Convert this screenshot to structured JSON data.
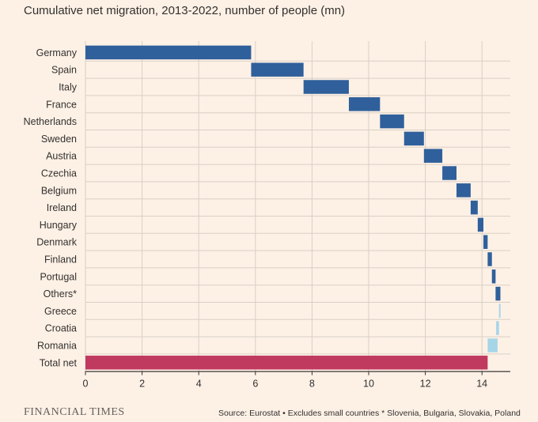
{
  "chart_data": {
    "type": "bar",
    "variant": "waterfall",
    "title": "Cumulative net migration, 2013-2022, number of people (mn)",
    "xlabel": "",
    "ylabel": "",
    "xlim": [
      0,
      15
    ],
    "xticks": [
      "0",
      "2",
      "4",
      "6",
      "8",
      "10",
      "12",
      "14"
    ],
    "grid": true,
    "categories": [
      "Germany",
      "Spain",
      "Italy",
      "France",
      "Netherlands",
      "Sweden",
      "Austria",
      "Czechia",
      "Belgium",
      "Ireland",
      "Hungary",
      "Denmark",
      "Finland",
      "Portugal",
      "Others*",
      "Greece",
      "Croatia",
      "Romania",
      "Total net"
    ],
    "start": [
      0,
      5.85,
      7.7,
      9.3,
      10.4,
      11.25,
      11.95,
      12.6,
      13.1,
      13.6,
      13.85,
      14.05,
      14.2,
      14.35,
      14.48,
      14.6,
      14.5,
      14.2,
      0
    ],
    "end": [
      5.85,
      7.7,
      9.3,
      10.4,
      11.25,
      11.95,
      12.6,
      13.1,
      13.6,
      13.85,
      14.05,
      14.2,
      14.35,
      14.48,
      14.65,
      14.65,
      14.6,
      14.55,
      14.2
    ],
    "change": [
      "increase",
      "increase",
      "increase",
      "increase",
      "increase",
      "increase",
      "increase",
      "increase",
      "increase",
      "increase",
      "increase",
      "increase",
      "increase",
      "increase",
      "increase",
      "decrease",
      "decrease",
      "decrease",
      "total"
    ]
  },
  "colors": {
    "increase": "#30609b",
    "decrease": "#a6d5e8",
    "total": "#c0395f",
    "grid": "#d9cfc4",
    "axis": "#33302e"
  },
  "footer": {
    "brand": "FINANCIAL TIMES",
    "source": "Source: Eurostat • Excludes small countries * Slovenia, Bulgaria, Slovakia, Poland"
  }
}
